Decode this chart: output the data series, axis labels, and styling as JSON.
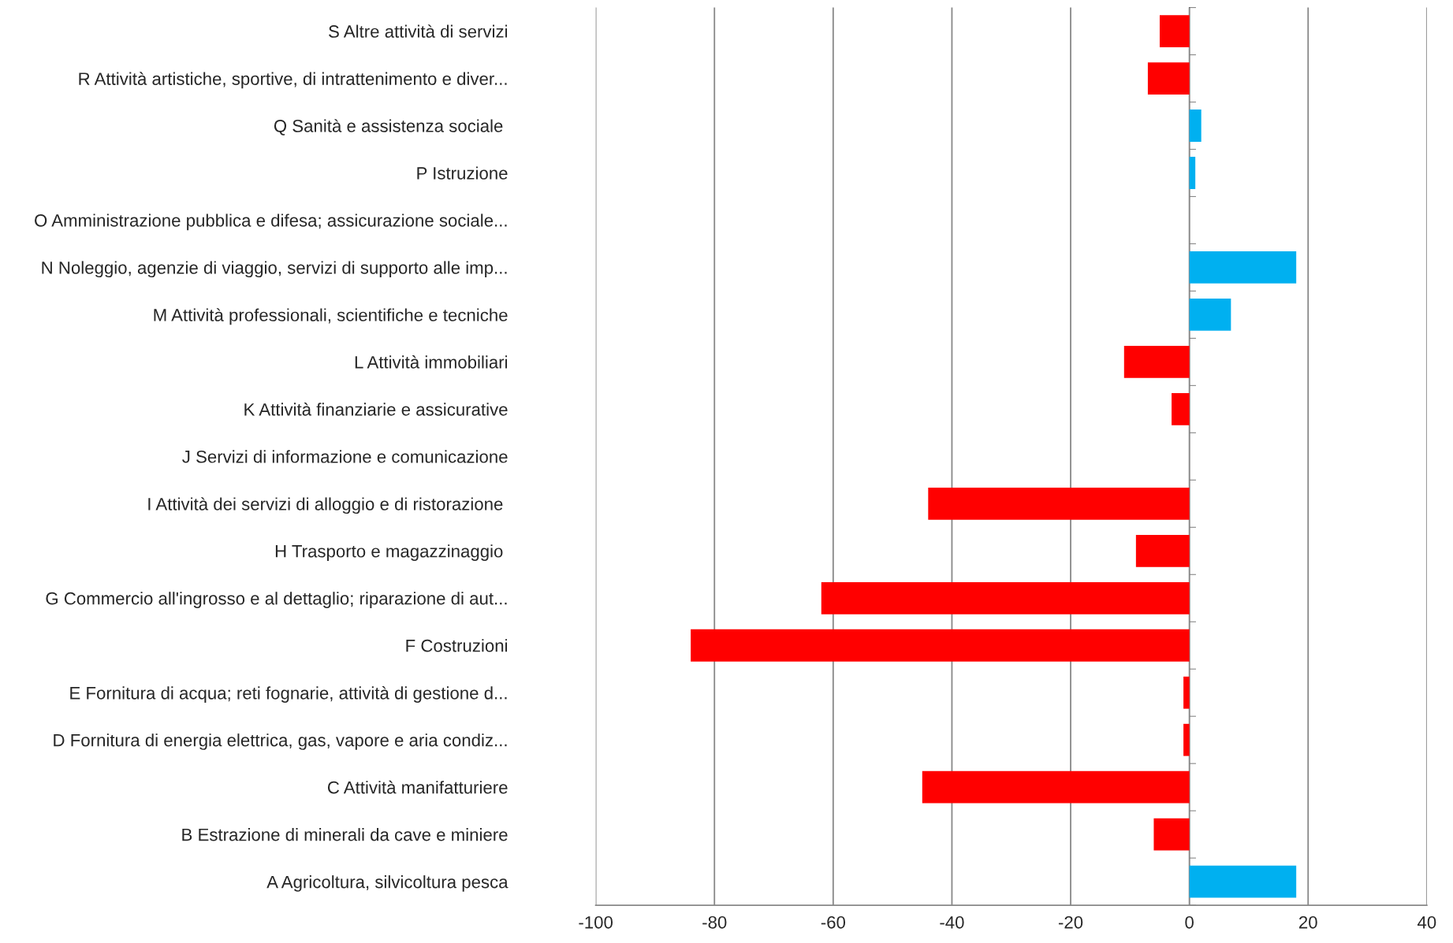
{
  "chart_data": {
    "type": "bar",
    "orientation": "horizontal",
    "categories": [
      "S Altre attività di servizi",
      "R Attività artistiche, sportive, di intrattenimento e diver...",
      "Q Sanità e assistenza sociale ",
      "P Istruzione",
      "O Amministrazione pubblica e difesa; assicurazione sociale...",
      "N Noleggio, agenzie di viaggio, servizi di supporto alle imp...",
      "M Attività professionali, scientifiche e tecniche",
      "L Attività immobiliari",
      "K Attività finanziarie e assicurative",
      "J Servizi di informazione e comunicazione",
      "I Attività dei servizi di alloggio e di ristorazione ",
      "H Trasporto e magazzinaggio ",
      "G Commercio all'ingrosso e al dettaglio; riparazione di aut...",
      "F Costruzioni",
      "E Fornitura di acqua; reti fognarie, attività di gestione d...",
      "D Fornitura di energia elettrica, gas, vapore e aria condiz...",
      "C Attività manifatturiere",
      "B Estrazione di minerali da cave e miniere",
      "A Agricoltura, silvicoltura pesca"
    ],
    "values": [
      -5,
      -7,
      2,
      1,
      0,
      18,
      7,
      -11,
      -3,
      0,
      -44,
      -9,
      -62,
      -84,
      -1,
      -1,
      -45,
      -6,
      18
    ],
    "colors": [
      "#ff0000",
      "#ff0000",
      "#00b0f0",
      "#00b0f0",
      "#00b0f0",
      "#00b0f0",
      "#00b0f0",
      "#ff0000",
      "#ff0000",
      "#00b0f0",
      "#ff0000",
      "#ff0000",
      "#ff0000",
      "#ff0000",
      "#ff0000",
      "#ff0000",
      "#ff0000",
      "#ff0000",
      "#00b0f0"
    ],
    "xlim": [
      -100,
      40
    ],
    "xticks": [
      -100,
      -80,
      -60,
      -40,
      -20,
      0,
      20,
      40
    ],
    "grid": "x",
    "legend": false
  }
}
